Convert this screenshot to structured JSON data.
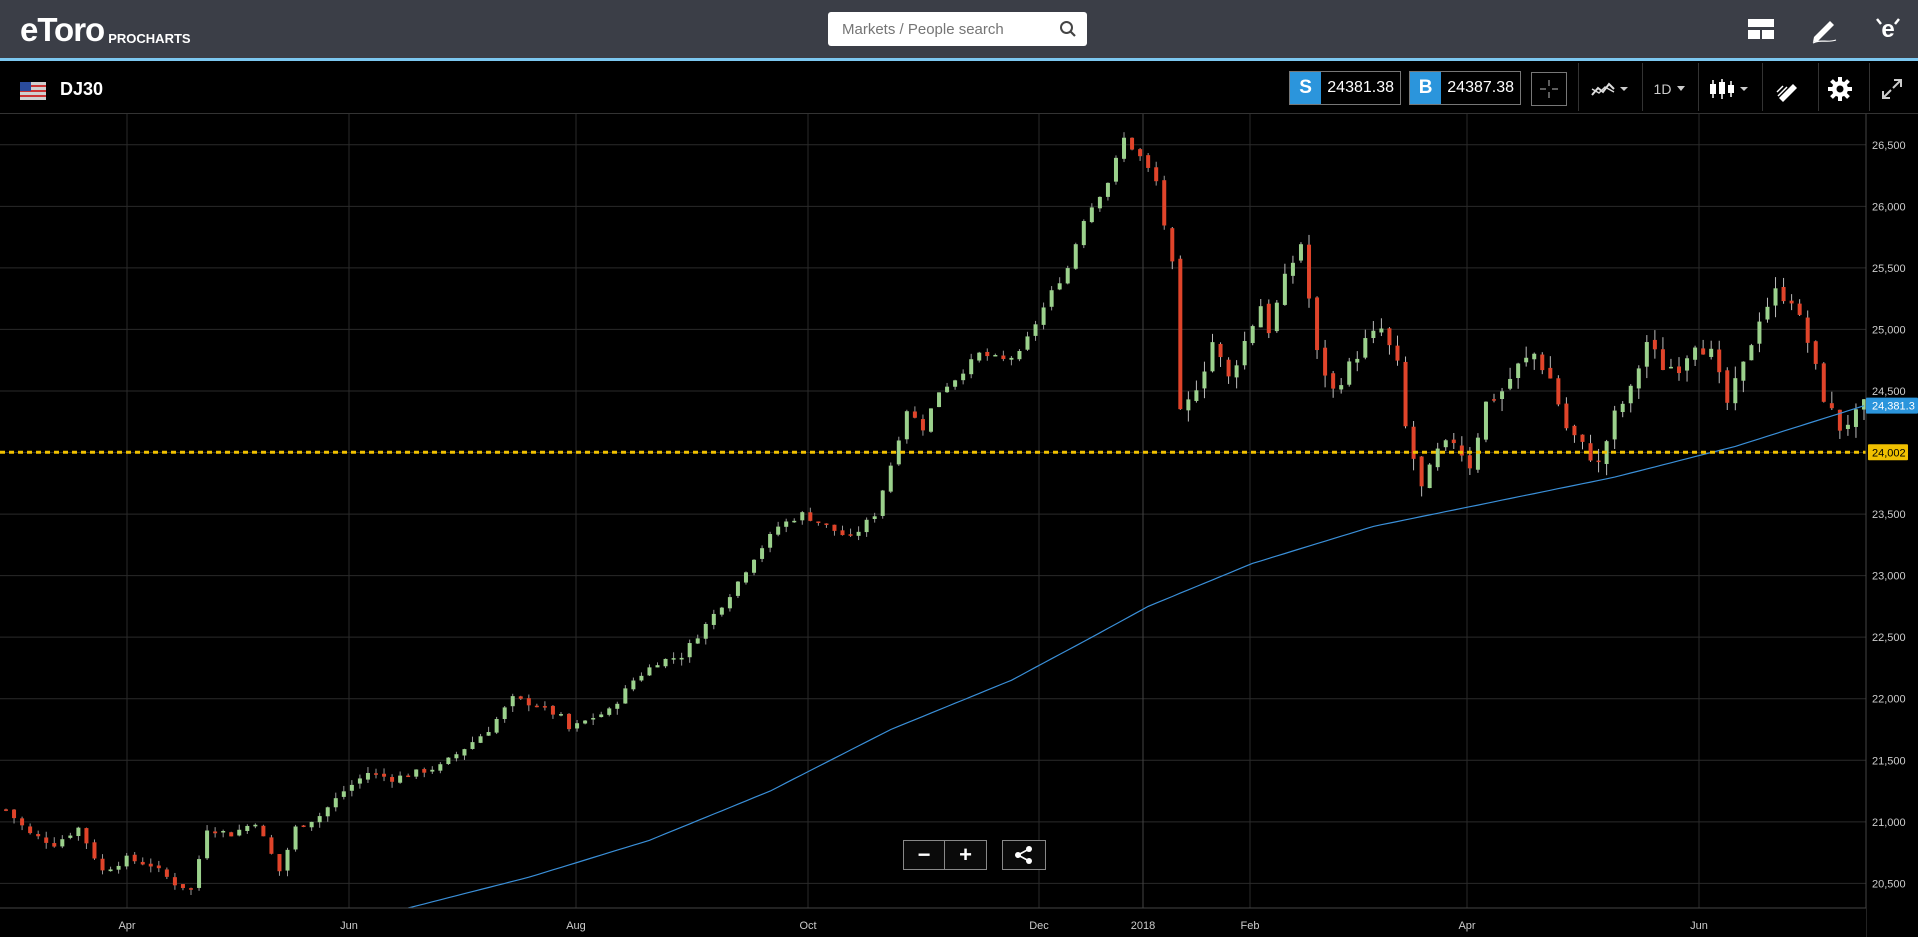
{
  "header": {
    "logo_text": "eToro",
    "logo_sub": "PROCHARTS",
    "search_placeholder": "Markets / People search",
    "icons": [
      "layout-icon",
      "pencil-icon",
      "etoro-e-icon"
    ]
  },
  "toolbar": {
    "symbol": "DJ30",
    "sell_label": "S",
    "sell_price": "24381.38",
    "buy_label": "B",
    "buy_price": "24387.38",
    "timeframe": "1D",
    "icons": [
      "crosshair-icon",
      "indicators-icon",
      "candlestick-icon",
      "draw-tools-icon",
      "gear-icon",
      "fullscreen-icon"
    ]
  },
  "colors": {
    "up": "#9bd18c",
    "down": "#e0442a",
    "ma": "#3a8fd8",
    "level": "#f0c000",
    "price_tag": "#2b95dc",
    "grid": "#2a2a2a"
  },
  "chart_data": {
    "type": "candlestick",
    "instrument": "DJ30",
    "interval": "1D",
    "y_ticks": [
      20500,
      21000,
      21500,
      22000,
      22500,
      23000,
      23500,
      24000,
      24500,
      25000,
      25500,
      26000,
      26500
    ],
    "y_tick_labels": [
      "20,500",
      "21,000",
      "21,500",
      "22,000",
      "22,500",
      "23,000",
      "23,500",
      "24,000",
      "24,500",
      "25,000",
      "25,500",
      "26,000",
      "26,500"
    ],
    "ylim": [
      20300,
      26750
    ],
    "x_labels": [
      "Apr",
      "Jun",
      "Aug",
      "Oct",
      "Dec",
      "2018",
      "Feb",
      "Apr",
      "Jun"
    ],
    "current_price_label": "24,381.3",
    "current_price": 24381.3,
    "horizontal_level_label": "24,002",
    "horizontal_level": 24002,
    "close_path": [
      [
        0,
        21100
      ],
      [
        3,
        20900
      ],
      [
        6,
        20820
      ],
      [
        9,
        20950
      ],
      [
        12,
        20600
      ],
      [
        15,
        20700
      ],
      [
        18,
        20650
      ],
      [
        21,
        20500
      ],
      [
        23,
        20450
      ],
      [
        25,
        20950
      ],
      [
        28,
        20900
      ],
      [
        31,
        21000
      ],
      [
        34,
        20600
      ],
      [
        36,
        20950
      ],
      [
        39,
        21050
      ],
      [
        42,
        21250
      ],
      [
        45,
        21400
      ],
      [
        48,
        21350
      ],
      [
        51,
        21400
      ],
      [
        54,
        21450
      ],
      [
        57,
        21600
      ],
      [
        60,
        21750
      ],
      [
        63,
        22000
      ],
      [
        66,
        21950
      ],
      [
        69,
        21850
      ],
      [
        70,
        21750
      ],
      [
        73,
        21850
      ],
      [
        75,
        21900
      ],
      [
        78,
        22150
      ],
      [
        81,
        22300
      ],
      [
        84,
        22350
      ],
      [
        87,
        22600
      ],
      [
        90,
        22850
      ],
      [
        93,
        23150
      ],
      [
        96,
        23400
      ],
      [
        99,
        23500
      ],
      [
        102,
        23400
      ],
      [
        105,
        23300
      ],
      [
        108,
        23500
      ],
      [
        110,
        23900
      ],
      [
        112,
        24350
      ],
      [
        114,
        24200
      ],
      [
        116,
        24500
      ],
      [
        118,
        24600
      ],
      [
        121,
        24800
      ],
      [
        124,
        24750
      ],
      [
        126,
        24800
      ],
      [
        128,
        25050
      ],
      [
        130,
        25300
      ],
      [
        132,
        25500
      ],
      [
        134,
        25900
      ],
      [
        136,
        26100
      ],
      [
        137,
        26200
      ],
      [
        139,
        26550
      ],
      [
        141,
        26400
      ],
      [
        143,
        26200
      ],
      [
        145,
        25500
      ],
      [
        146,
        24300
      ],
      [
        147,
        24400
      ],
      [
        149,
        24700
      ],
      [
        150,
        24900
      ],
      [
        152,
        24600
      ],
      [
        154,
        24900
      ],
      [
        156,
        25200
      ],
      [
        157,
        25000
      ],
      [
        159,
        25400
      ],
      [
        161,
        25700
      ],
      [
        163,
        24800
      ],
      [
        165,
        24500
      ],
      [
        167,
        24700
      ],
      [
        169,
        24900
      ],
      [
        171,
        25000
      ],
      [
        173,
        24700
      ],
      [
        174,
        24200
      ],
      [
        176,
        23700
      ],
      [
        178,
        24000
      ],
      [
        180,
        24100
      ],
      [
        182,
        23900
      ],
      [
        184,
        24400
      ],
      [
        186,
        24500
      ],
      [
        188,
        24700
      ],
      [
        190,
        24800
      ],
      [
        192,
        24600
      ],
      [
        194,
        24200
      ],
      [
        196,
        24050
      ],
      [
        198,
        23900
      ],
      [
        200,
        24300
      ],
      [
        202,
        24500
      ],
      [
        204,
        24900
      ],
      [
        206,
        24700
      ],
      [
        208,
        24700
      ],
      [
        210,
        24900
      ],
      [
        212,
        24800
      ],
      [
        214,
        24400
      ],
      [
        216,
        24700
      ],
      [
        218,
        25100
      ],
      [
        220,
        25300
      ],
      [
        222,
        25250
      ],
      [
        224,
        24900
      ],
      [
        226,
        24450
      ],
      [
        228,
        24200
      ],
      [
        230,
        24300
      ],
      [
        231,
        24380
      ]
    ],
    "ma_path": [
      [
        0,
        20050
      ],
      [
        30,
        20200
      ],
      [
        50,
        20300
      ],
      [
        65,
        20550
      ],
      [
        80,
        20850
      ],
      [
        95,
        21250
      ],
      [
        110,
        21750
      ],
      [
        125,
        22150
      ],
      [
        135,
        22500
      ],
      [
        142,
        22750
      ],
      [
        155,
        23100
      ],
      [
        170,
        23400
      ],
      [
        185,
        23600
      ],
      [
        200,
        23800
      ],
      [
        215,
        24050
      ],
      [
        231,
        24380
      ]
    ],
    "bars_total": 232
  }
}
